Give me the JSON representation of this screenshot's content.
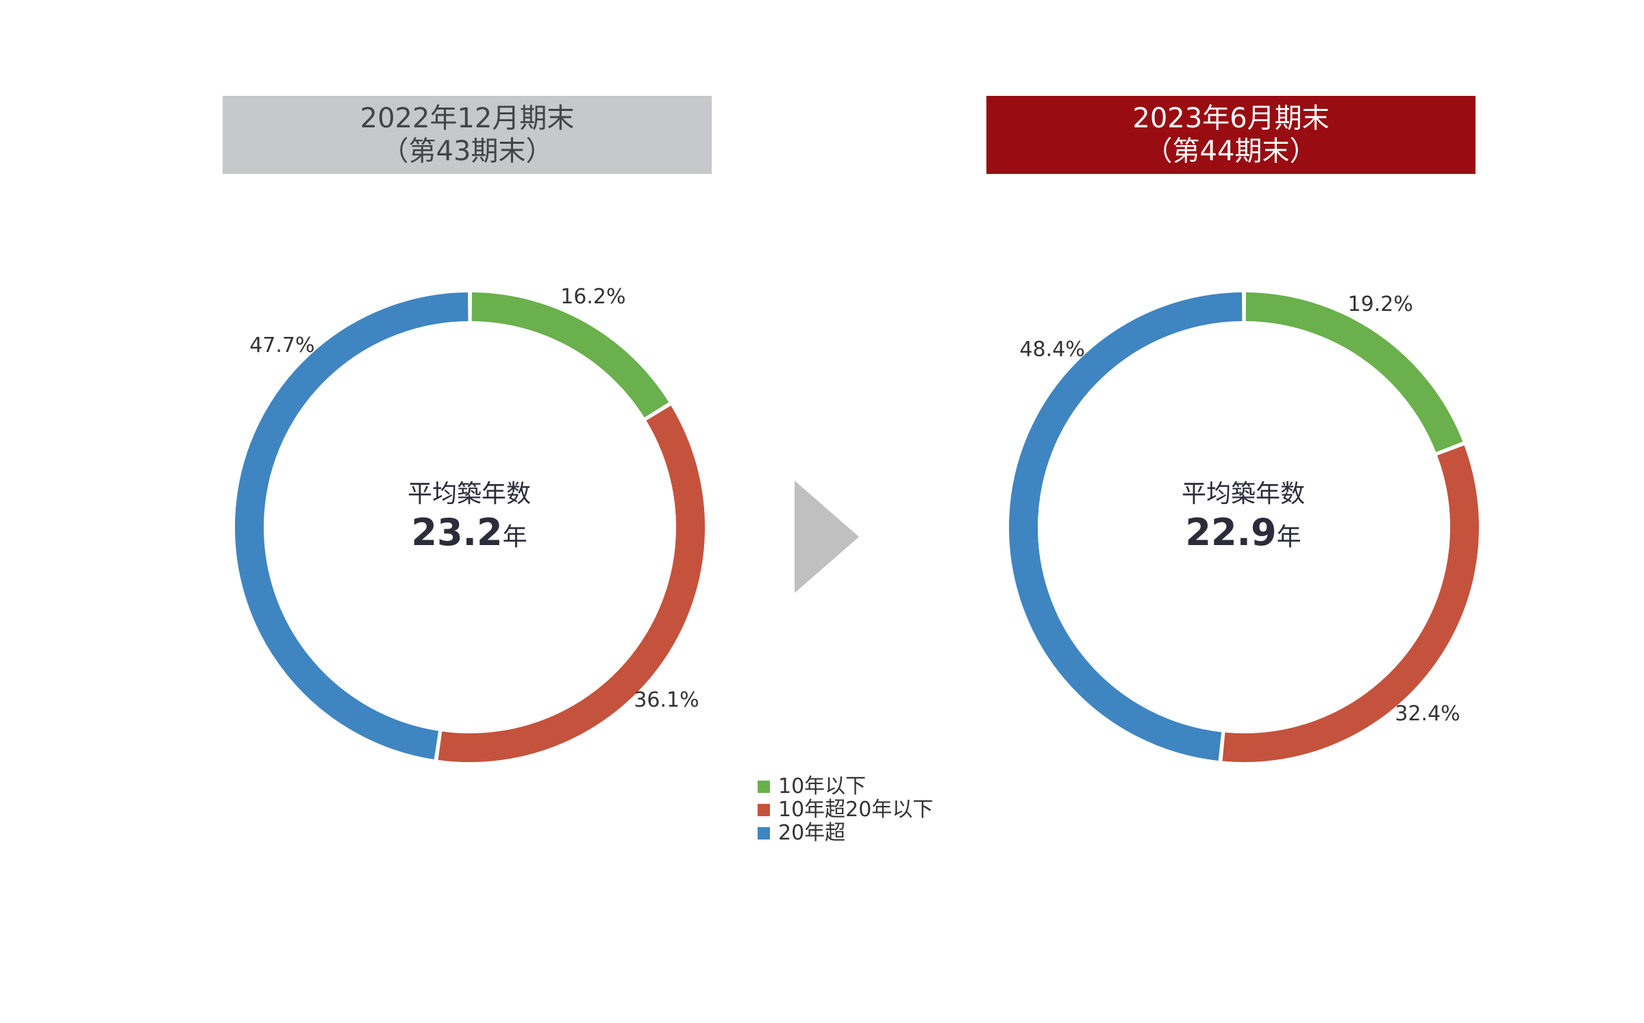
{
  "chart_data": [
    {
      "type": "pie",
      "title": "2022年12月期末",
      "subtitle": "（第43期末）",
      "categories": [
        "10年以下",
        "10年超20年以下",
        "20年超"
      ],
      "values": [
        16.2,
        36.1,
        47.7
      ],
      "value_labels": [
        "16.2%",
        "36.1%",
        "47.7%"
      ],
      "center_caption": "平均築年数",
      "center_value": "23.2",
      "center_unit": "年",
      "header_color": "#c6c8ca"
    },
    {
      "type": "pie",
      "title": "2023年6月期末",
      "subtitle": "（第44期末）",
      "categories": [
        "10年以下",
        "10年超20年以下",
        "20年超"
      ],
      "values": [
        19.2,
        32.4,
        48.4
      ],
      "value_labels": [
        "19.2%",
        "32.4%",
        "48.4%"
      ],
      "center_caption": "平均築年数",
      "center_value": "22.9",
      "center_unit": "年",
      "header_color": "#990c11"
    }
  ],
  "legend": {
    "placement": "bottom-center",
    "items": [
      {
        "label": "10年以下",
        "color": "#6ab04c"
      },
      {
        "label": "10年超20年以下",
        "color": "#c5523c"
      },
      {
        "label": "20年超",
        "color": "#3f85c1"
      }
    ]
  },
  "arrow_icon": "triangle-right-icon",
  "arrow_color": "#c0c0c0"
}
